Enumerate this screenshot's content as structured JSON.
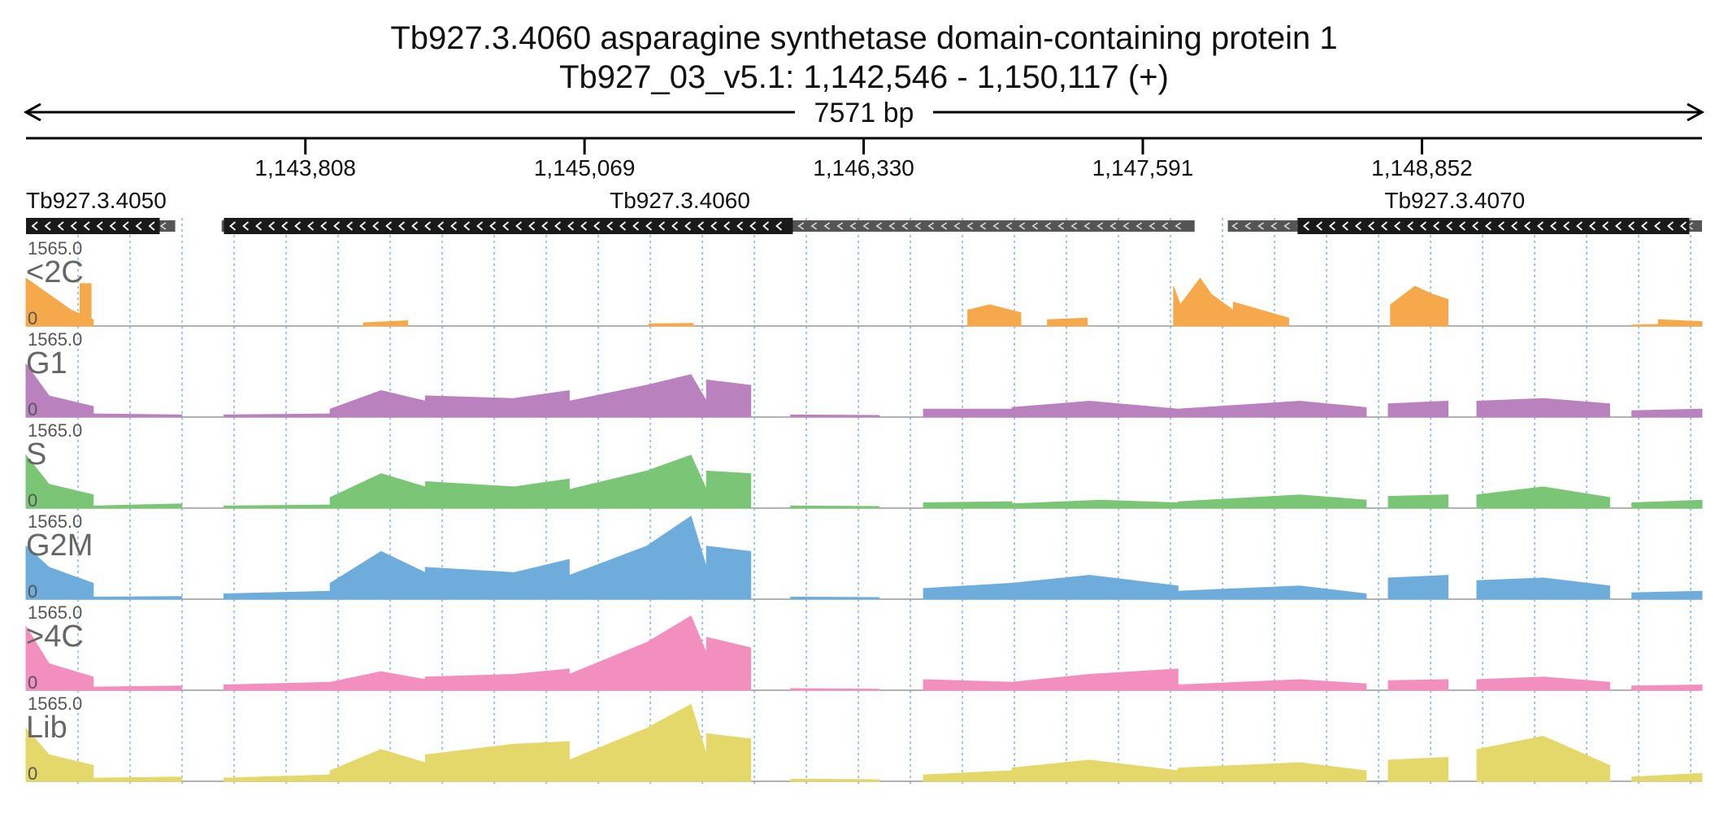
{
  "header": {
    "title": "Tb927.3.4060  asparagine synthetase domain-containing protein 1",
    "location": "Tb927_03_v5.1: 1,142,546 - 1,150,117 (+)",
    "span": "7571 bp"
  },
  "chart_data": {
    "type": "area",
    "region": {
      "start": 1142546,
      "end": 1150117,
      "strand": "+"
    },
    "ruler_ticks": [
      {
        "pos": 1143808,
        "label": "1,143,808"
      },
      {
        "pos": 1145069,
        "label": "1,145,069"
      },
      {
        "pos": 1146330,
        "label": "1,146,330"
      },
      {
        "pos": 1147591,
        "label": "1,147,591"
      },
      {
        "pos": 1148852,
        "label": "1,148,852"
      }
    ],
    "genes": [
      {
        "name": "Tb927.3.4050",
        "utr": [
          [
            1142546,
            1143220
          ]
        ],
        "cds": [
          [
            1142546,
            1143150
          ]
        ],
        "label_pos": 1142546
      },
      {
        "name": "Tb927.3.4060",
        "utr": [
          [
            1143430,
            1147825
          ]
        ],
        "cds": [
          [
            1143440,
            1146010
          ]
        ],
        "label_pos": 1145500
      },
      {
        "name": "Tb927.3.4070",
        "utr": [
          [
            1147975,
            1150117
          ]
        ],
        "cds": [
          [
            1148290,
            1150060
          ]
        ],
        "label_pos": 1149000
      }
    ],
    "grid_spacing_bp": 235,
    "ylim": [
      0,
      1565.0
    ],
    "tracks": [
      {
        "name": "<2C",
        "color": "#F5A94A",
        "max_label": "1565.0",
        "zero_label": "0",
        "segments": [
          {
            "x": [
              1142546,
              1142750,
              1142850
            ],
            "y": [
              900,
              300,
              120
            ]
          },
          {
            "x": [
              1142790,
              1142840
            ],
            "y": [
              800,
              800
            ]
          },
          {
            "x": [
              1144070,
              1144270
            ],
            "y": [
              60,
              100
            ]
          },
          {
            "x": [
              1145360,
              1145560
            ],
            "y": [
              40,
              50
            ]
          },
          {
            "x": [
              1146800,
              1146900,
              1147040
            ],
            "y": [
              300,
              400,
              250
            ]
          },
          {
            "x": [
              1147160,
              1147340
            ],
            "y": [
              120,
              150
            ]
          },
          {
            "x": [
              1147730,
              1147760,
              1147850,
              1147900,
              1148000
            ],
            "y": [
              750,
              400,
              900,
              600,
              300
            ]
          },
          {
            "x": [
              1148000,
              1148250
            ],
            "y": [
              450,
              150
            ]
          },
          {
            "x": [
              1148710,
              1148820,
              1148900,
              1148970
            ],
            "y": [
              400,
              750,
              600,
              500
            ]
          },
          {
            "x": [
              1149800,
              1149950
            ],
            "y": [
              20,
              30
            ]
          },
          {
            "x": [
              1149920,
              1150117
            ],
            "y": [
              120,
              80
            ]
          }
        ]
      },
      {
        "name": "G1",
        "color": "#B981BE",
        "max_label": "1565.0",
        "zero_label": "0",
        "segments": [
          {
            "x": [
              1142546,
              1142650,
              1142850
            ],
            "y": [
              1000,
              400,
              200
            ]
          },
          {
            "x": [
              1142850,
              1143250
            ],
            "y": [
              60,
              40
            ]
          },
          {
            "x": [
              1143440,
              1143920
            ],
            "y": [
              40,
              60
            ]
          },
          {
            "x": [
              1143920,
              1144150,
              1144350
            ],
            "y": [
              150,
              500,
              300
            ]
          },
          {
            "x": [
              1144350,
              1144750,
              1145000
            ],
            "y": [
              400,
              350,
              500
            ]
          },
          {
            "x": [
              1145000,
              1145350,
              1145550,
              1145620
            ],
            "y": [
              300,
              600,
              800,
              300
            ]
          },
          {
            "x": [
              1145620,
              1145820
            ],
            "y": [
              700,
              600
            ]
          },
          {
            "x": [
              1146000,
              1146400
            ],
            "y": [
              40,
              30
            ]
          },
          {
            "x": [
              1146600,
              1147000
            ],
            "y": [
              150,
              150
            ]
          },
          {
            "x": [
              1147000,
              1147350,
              1147750
            ],
            "y": [
              180,
              300,
              150
            ]
          },
          {
            "x": [
              1147750,
              1148300,
              1148600
            ],
            "y": [
              150,
              300,
              180
            ]
          },
          {
            "x": [
              1148700,
              1148970
            ],
            "y": [
              250,
              300
            ]
          },
          {
            "x": [
              1149100,
              1149400,
              1149700
            ],
            "y": [
              300,
              350,
              250
            ]
          },
          {
            "x": [
              1149800,
              1150117
            ],
            "y": [
              120,
              150
            ]
          }
        ]
      },
      {
        "name": "S",
        "color": "#7BC676",
        "max_label": "1565.0",
        "zero_label": "0",
        "segments": [
          {
            "x": [
              1142546,
              1142650,
              1142850
            ],
            "y": [
              1000,
              450,
              250
            ]
          },
          {
            "x": [
              1142850,
              1143250
            ],
            "y": [
              40,
              80
            ]
          },
          {
            "x": [
              1143440,
              1143920
            ],
            "y": [
              40,
              60
            ]
          },
          {
            "x": [
              1143920,
              1144150,
              1144350
            ],
            "y": [
              200,
              650,
              400
            ]
          },
          {
            "x": [
              1144350,
              1144750,
              1145000
            ],
            "y": [
              500,
              400,
              550
            ]
          },
          {
            "x": [
              1145000,
              1145350,
              1145550,
              1145620
            ],
            "y": [
              350,
              700,
              1000,
              350
            ]
          },
          {
            "x": [
              1145620,
              1145820
            ],
            "y": [
              700,
              650
            ]
          },
          {
            "x": [
              1146000,
              1146400
            ],
            "y": [
              40,
              30
            ]
          },
          {
            "x": [
              1146600,
              1147000
            ],
            "y": [
              100,
              120
            ]
          },
          {
            "x": [
              1147000,
              1147400,
              1147750
            ],
            "y": [
              80,
              150,
              100
            ]
          },
          {
            "x": [
              1147750,
              1148300,
              1148600
            ],
            "y": [
              120,
              250,
              150
            ]
          },
          {
            "x": [
              1148700,
              1148970
            ],
            "y": [
              220,
              250
            ]
          },
          {
            "x": [
              1149100,
              1149400,
              1149700
            ],
            "y": [
              250,
              400,
              200
            ]
          },
          {
            "x": [
              1149800,
              1150117
            ],
            "y": [
              100,
              150
            ]
          }
        ]
      },
      {
        "name": "G2M",
        "color": "#6EACDC",
        "max_label": "1565.0",
        "zero_label": "0",
        "segments": [
          {
            "x": [
              1142546,
              1142650,
              1142850
            ],
            "y": [
              1000,
              600,
              300
            ]
          },
          {
            "x": [
              1142850,
              1143250
            ],
            "y": [
              40,
              50
            ]
          },
          {
            "x": [
              1143440,
              1143920
            ],
            "y": [
              100,
              150
            ]
          },
          {
            "x": [
              1143920,
              1144150,
              1144350
            ],
            "y": [
              300,
              900,
              500
            ]
          },
          {
            "x": [
              1144350,
              1144750,
              1145000
            ],
            "y": [
              600,
              500,
              750
            ]
          },
          {
            "x": [
              1145000,
              1145350,
              1145550,
              1145620
            ],
            "y": [
              450,
              1000,
              1565,
              600
            ]
          },
          {
            "x": [
              1145620,
              1145820
            ],
            "y": [
              1000,
              900
            ]
          },
          {
            "x": [
              1146000,
              1146400
            ],
            "y": [
              40,
              30
            ]
          },
          {
            "x": [
              1146600,
              1147000
            ],
            "y": [
              200,
              300
            ]
          },
          {
            "x": [
              1147000,
              1147350,
              1147750
            ],
            "y": [
              300,
              450,
              250
            ]
          },
          {
            "x": [
              1147750,
              1148300,
              1148600
            ],
            "y": [
              150,
              250,
              100
            ]
          },
          {
            "x": [
              1148700,
              1148970
            ],
            "y": [
              400,
              450
            ]
          },
          {
            "x": [
              1149100,
              1149400,
              1149700
            ],
            "y": [
              350,
              400,
              250
            ]
          },
          {
            "x": [
              1149800,
              1150117
            ],
            "y": [
              120,
              150
            ]
          }
        ]
      },
      {
        "name": ">4C",
        "color": "#F28FBF",
        "max_label": "1565.0",
        "zero_label": "0",
        "segments": [
          {
            "x": [
              1142546,
              1142650,
              1142850
            ],
            "y": [
              1200,
              500,
              250
            ]
          },
          {
            "x": [
              1142850,
              1143250
            ],
            "y": [
              60,
              80
            ]
          },
          {
            "x": [
              1143440,
              1143920
            ],
            "y": [
              100,
              150
            ]
          },
          {
            "x": [
              1143920,
              1144150,
              1144350
            ],
            "y": [
              150,
              350,
              200
            ]
          },
          {
            "x": [
              1144350,
              1144750,
              1145000
            ],
            "y": [
              250,
              300,
              400
            ]
          },
          {
            "x": [
              1145000,
              1145350,
              1145550,
              1145620
            ],
            "y": [
              300,
              900,
              1400,
              700
            ]
          },
          {
            "x": [
              1145620,
              1145820
            ],
            "y": [
              1000,
              800
            ]
          },
          {
            "x": [
              1146000,
              1146400
            ],
            "y": [
              30,
              20
            ]
          },
          {
            "x": [
              1146600,
              1147000
            ],
            "y": [
              200,
              150
            ]
          },
          {
            "x": [
              1147000,
              1147350,
              1147750
            ],
            "y": [
              150,
              300,
              400
            ]
          },
          {
            "x": [
              1147750,
              1148300,
              1148600
            ],
            "y": [
              100,
              200,
              120
            ]
          },
          {
            "x": [
              1148700,
              1148970
            ],
            "y": [
              180,
              200
            ]
          },
          {
            "x": [
              1149100,
              1149400,
              1149700
            ],
            "y": [
              200,
              250,
              150
            ]
          },
          {
            "x": [
              1149800,
              1150117
            ],
            "y": [
              80,
              100
            ]
          }
        ]
      },
      {
        "name": "Lib",
        "color": "#E4D86A",
        "max_label": "1565.0",
        "zero_label": "0",
        "segments": [
          {
            "x": [
              1142546,
              1142650,
              1142850
            ],
            "y": [
              1000,
              500,
              300
            ]
          },
          {
            "x": [
              1142850,
              1143250
            ],
            "y": [
              60,
              80
            ]
          },
          {
            "x": [
              1143440,
              1143920
            ],
            "y": [
              60,
              120
            ]
          },
          {
            "x": [
              1143920,
              1144150,
              1144350
            ],
            "y": [
              200,
              600,
              350
            ]
          },
          {
            "x": [
              1144350,
              1144750,
              1145000
            ],
            "y": [
              500,
              700,
              750
            ]
          },
          {
            "x": [
              1145000,
              1145350,
              1145550,
              1145620
            ],
            "y": [
              400,
              1000,
              1450,
              500
            ]
          },
          {
            "x": [
              1145620,
              1145820
            ],
            "y": [
              900,
              800
            ]
          },
          {
            "x": [
              1146000,
              1146400
            ],
            "y": [
              40,
              30
            ]
          },
          {
            "x": [
              1146600,
              1147000
            ],
            "y": [
              120,
              200
            ]
          },
          {
            "x": [
              1147000,
              1147350,
              1147750
            ],
            "y": [
              250,
              400,
              200
            ]
          },
          {
            "x": [
              1147750,
              1148300,
              1148600
            ],
            "y": [
              250,
              350,
              200
            ]
          },
          {
            "x": [
              1148700,
              1148970
            ],
            "y": [
              400,
              450
            ]
          },
          {
            "x": [
              1149100,
              1149400,
              1149700
            ],
            "y": [
              600,
              850,
              300
            ]
          },
          {
            "x": [
              1149800,
              1150117
            ],
            "y": [
              80,
              150
            ]
          }
        ]
      }
    ]
  }
}
